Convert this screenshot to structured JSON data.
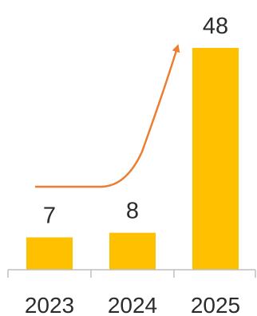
{
  "chart_data": {
    "type": "bar",
    "categories": [
      "2023",
      "2024",
      "2025"
    ],
    "values": [
      7,
      8,
      48
    ],
    "title": "",
    "xlabel": "",
    "ylabel": "",
    "ylim": [
      0,
      48
    ],
    "grid": false,
    "legend": "none",
    "bar_color": "#ffc000",
    "axis_color": "#bfbfbf",
    "trend_arrow_color": "#ed7d31"
  }
}
